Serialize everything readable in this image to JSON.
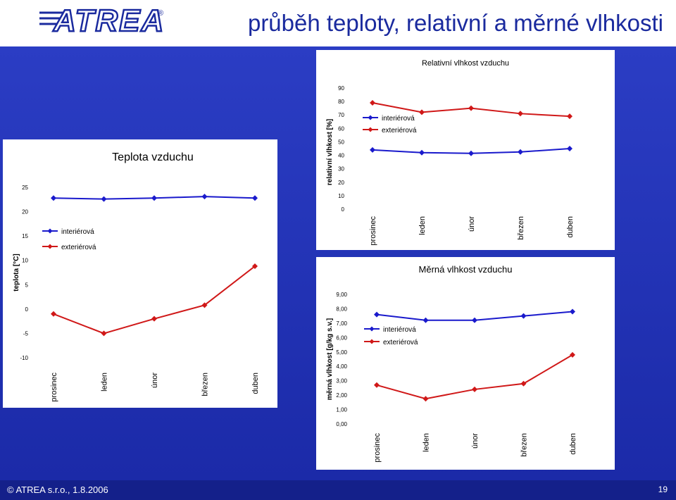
{
  "header": {
    "title": "průběh teploty, relativní a měrné vlhkosti",
    "logo_text": "ATREA",
    "logo_mark": "®"
  },
  "footer": {
    "copyright": "© ATREA s.r.o., 1.8.2006",
    "page_number": "19"
  },
  "colors": {
    "background": "#1b2aa8",
    "header_title": "#1a2a9e",
    "interior_series": "#1a1acc",
    "exterior_series": "#d01818",
    "footer": "#14208a"
  },
  "chart_data": [
    {
      "id": "temperature",
      "type": "line",
      "title": "Teplota vzduchu",
      "xlabel": "",
      "ylabel": "teplota [°C]",
      "categories": [
        "prosinec",
        "leden",
        "únor",
        "březen",
        "duben"
      ],
      "ylim": [
        -10,
        25
      ],
      "yticks": [
        "25",
        "20",
        "15",
        "10",
        "5",
        "0",
        "-5",
        "-10"
      ],
      "ytick_values": [
        25,
        20,
        15,
        10,
        5,
        0,
        -5,
        -10
      ],
      "grid": false,
      "legend": "top-left",
      "series": [
        {
          "name": "interiérová",
          "color": "#1a1acc",
          "marker": "diamond",
          "values": [
            22.8,
            22.6,
            22.8,
            23.1,
            22.8
          ]
        },
        {
          "name": "exteriérová",
          "color": "#d01818",
          "marker": "diamond",
          "values": [
            -1.0,
            -5.0,
            -2.0,
            0.8,
            8.8
          ]
        }
      ]
    },
    {
      "id": "relative_humidity",
      "type": "line",
      "title": "Relativní vlhkost vzduchu",
      "xlabel": "",
      "ylabel": "relativní vlhkost [%]",
      "categories": [
        "prosinec",
        "leden",
        "únor",
        "březen",
        "duben"
      ],
      "ylim": [
        0,
        90
      ],
      "yticks": [
        "90",
        "80",
        "70",
        "60",
        "50",
        "40",
        "30",
        "20",
        "10",
        "0"
      ],
      "ytick_values": [
        90,
        80,
        70,
        60,
        50,
        40,
        30,
        20,
        10,
        0
      ],
      "grid": false,
      "legend": "top-left",
      "series": [
        {
          "name": "interiérová",
          "color": "#1a1acc",
          "marker": "diamond",
          "values": [
            44,
            42,
            41.5,
            42.5,
            45
          ]
        },
        {
          "name": "exteriérová",
          "color": "#d01818",
          "marker": "diamond",
          "values": [
            79,
            72,
            75,
            71,
            69
          ]
        }
      ]
    },
    {
      "id": "specific_humidity",
      "type": "line",
      "title": "Měrná vlhkost vzduchu",
      "xlabel": "",
      "ylabel": "měrná vlhkost [g/kg s.v.]",
      "categories": [
        "prosinec",
        "leden",
        "únor",
        "březen",
        "duben"
      ],
      "ylim": [
        0,
        9
      ],
      "yticks": [
        "9,00",
        "8,00",
        "7,00",
        "6,00",
        "5,00",
        "4,00",
        "3,00",
        "2,00",
        "1,00",
        "0,00"
      ],
      "ytick_values": [
        9,
        8,
        7,
        6,
        5,
        4,
        3,
        2,
        1,
        0
      ],
      "grid": false,
      "legend": "top-left",
      "series": [
        {
          "name": "interiérová",
          "color": "#1a1acc",
          "marker": "diamond",
          "values": [
            7.6,
            7.2,
            7.2,
            7.5,
            7.8
          ]
        },
        {
          "name": "exteriérová",
          "color": "#d01818",
          "marker": "diamond",
          "values": [
            2.7,
            1.75,
            2.4,
            2.8,
            4.8
          ]
        }
      ]
    }
  ]
}
